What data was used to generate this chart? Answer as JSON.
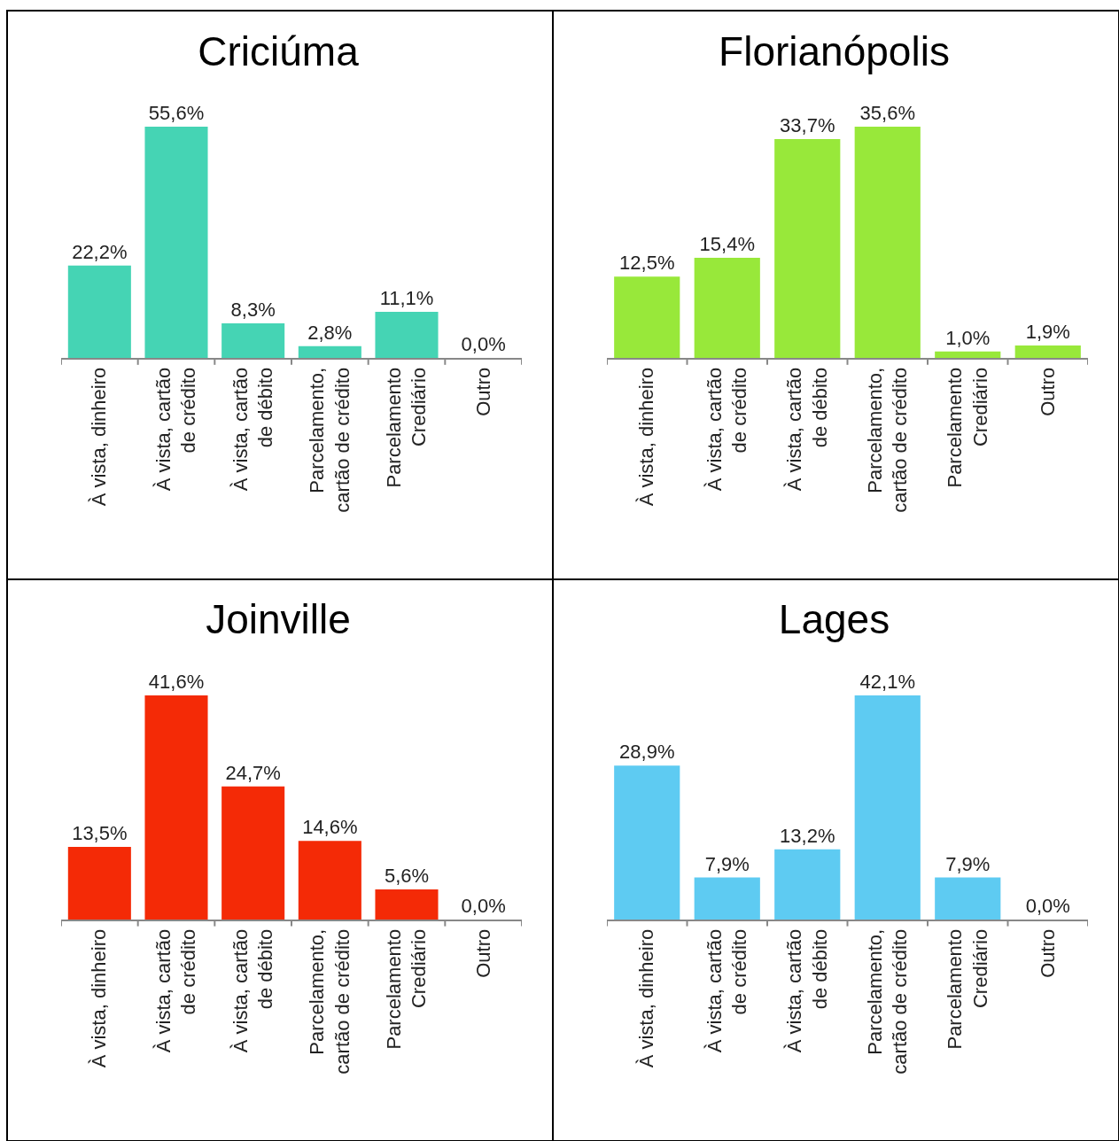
{
  "chart_data": [
    {
      "type": "bar",
      "title": "Criciúma",
      "categories": [
        "À vista, dinheiro",
        "À vista, cartão\nde crédito",
        "À vista, cartão\nde débito",
        "Parcelamento,\ncartão de crédito",
        "Parcelamento\nCrediário",
        "Outro"
      ],
      "color": "#45d4b4",
      "values": [
        22.2,
        55.6,
        8.3,
        2.8,
        11.1,
        0.0
      ],
      "value_labels": [
        "22,2%",
        "55,6%",
        "8,3%",
        "2,8%",
        "11,1%",
        "0,0%"
      ]
    },
    {
      "type": "bar",
      "title": "Florianópolis",
      "categories": [
        "À vista, dinheiro",
        "À vista, cartão\nde crédito",
        "À vista, cartão\nde débito",
        "Parcelamento,\ncartão de crédito",
        "Parcelamento\nCrediário",
        "Outro"
      ],
      "color": "#98e83a",
      "values": [
        12.5,
        15.4,
        33.7,
        35.6,
        1.0,
        1.9
      ],
      "value_labels": [
        "12,5%",
        "15,4%",
        "33,7%",
        "35,6%",
        "1,0%",
        "1,9%"
      ]
    },
    {
      "type": "bar",
      "title": "Joinville",
      "categories": [
        "À vista, dinheiro",
        "À vista, cartão\nde crédito",
        "À vista, cartão\nde débito",
        "Parcelamento,\ncartão de crédito",
        "Parcelamento\nCrediário",
        "Outro"
      ],
      "color": "#f42a06",
      "values": [
        13.5,
        41.6,
        24.7,
        14.6,
        5.6,
        0.0
      ],
      "value_labels": [
        "13,5%",
        "41,6%",
        "24,7%",
        "14,6%",
        "5,6%",
        "0,0%"
      ]
    },
    {
      "type": "bar",
      "title": "Lages",
      "categories": [
        "À vista, dinheiro",
        "À vista, cartão\nde crédito",
        "À vista, cartão\nde débito",
        "Parcelamento,\ncartão de crédito",
        "Parcelamento\nCrediário",
        "Outro"
      ],
      "color": "#5ecbf2",
      "values": [
        28.9,
        7.9,
        13.2,
        42.1,
        7.9,
        0.0
      ],
      "value_labels": [
        "28,9%",
        "7,9%",
        "13,2%",
        "42,1%",
        "7,9%",
        "0,0%"
      ]
    }
  ]
}
